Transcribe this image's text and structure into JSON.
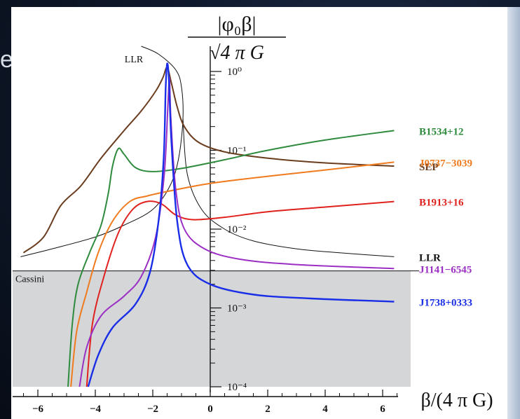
{
  "edge_char": "e",
  "chart_data": {
    "type": "line",
    "y_axis_label": {
      "numerator": "|φ₀β|",
      "denominator": "√4 π G"
    },
    "x_axis_label": "β/(4 π G)",
    "x_range": [
      -6.8,
      6.8
    ],
    "y_log_range": [
      -4.1,
      0.25
    ],
    "x_ticks": [
      -6,
      -4,
      -2,
      0,
      2,
      4,
      6
    ],
    "x_tick_labels": [
      "−6",
      "−4",
      "−2",
      "0",
      "2",
      "4",
      "6"
    ],
    "y_ticks": [
      0,
      -1,
      -2,
      -3,
      -4
    ],
    "y_tick_labels": [
      "10⁰",
      "10⁻¹",
      "10⁻²",
      "10⁻³",
      "10⁻⁴"
    ],
    "cassini": {
      "label": "Cassini",
      "log_value": -2.53,
      "excluded_region_color": "#d4d6d8"
    },
    "series": [
      {
        "name": "LLR",
        "color": "#111111",
        "stroke_width": 1,
        "label_positions": [
          "top",
          "right"
        ],
        "top_label": "LLR",
        "points": [
          [
            -6.6,
            -2.35
          ],
          [
            -5.5,
            -2.25
          ],
          [
            -4,
            -2.1
          ],
          [
            -3,
            -1.95
          ],
          [
            -2,
            -1.75
          ],
          [
            -1.4,
            -1.45
          ],
          [
            -1.1,
            -1.1
          ],
          [
            -0.95,
            -0.6
          ],
          [
            -1.0,
            -0.2
          ],
          [
            -1.2,
            0.02
          ],
          [
            -1.8,
            0.22
          ],
          [
            -2.4,
            0.32
          ]
        ],
        "points_right": [
          [
            -0.95,
            -0.6
          ],
          [
            -0.8,
            -1.3
          ],
          [
            -0.3,
            -1.75
          ],
          [
            0.5,
            -2.0
          ],
          [
            1.5,
            -2.15
          ],
          [
            3,
            -2.25
          ],
          [
            4.5,
            -2.3
          ],
          [
            6.4,
            -2.35
          ]
        ]
      },
      {
        "name": "SEP",
        "color": "#6b3d1f",
        "stroke_width": 2,
        "points": [
          [
            -6.5,
            -2.3
          ],
          [
            -5.8,
            -2.1
          ],
          [
            -5.2,
            -1.7
          ],
          [
            -4.5,
            -1.45
          ],
          [
            -3.8,
            -1.1
          ],
          [
            -3.0,
            -0.75
          ],
          [
            -2.4,
            -0.5
          ],
          [
            -1.9,
            -0.25
          ],
          [
            -1.65,
            -0.08
          ],
          [
            -1.5,
            0.05
          ],
          [
            -1.35,
            -0.15
          ],
          [
            -1.15,
            -0.45
          ],
          [
            -0.9,
            -0.7
          ],
          [
            -0.4,
            -0.9
          ],
          [
            0.5,
            -1.02
          ],
          [
            2,
            -1.1
          ],
          [
            4,
            -1.16
          ],
          [
            6.4,
            -1.2
          ]
        ]
      },
      {
        "name": "B1534+12",
        "color": "#2e8b3e",
        "stroke_width": 2,
        "points": [
          [
            -4.95,
            -4.0
          ],
          [
            -4.8,
            -3.2
          ],
          [
            -4.6,
            -2.7
          ],
          [
            -4.2,
            -2.3
          ],
          [
            -3.8,
            -1.95
          ],
          [
            -3.55,
            -1.55
          ],
          [
            -3.4,
            -1.2
          ],
          [
            -3.2,
            -0.98
          ],
          [
            -3.0,
            -1.05
          ],
          [
            -2.6,
            -1.22
          ],
          [
            -2.0,
            -1.27
          ],
          [
            -1,
            -1.23
          ],
          [
            0.5,
            -1.12
          ],
          [
            2,
            -1.0
          ],
          [
            4,
            -0.87
          ],
          [
            6.4,
            -0.75
          ]
        ]
      },
      {
        "name": "J0737-3039",
        "color": "#f07b1e",
        "stroke_width": 2,
        "points": [
          [
            -4.85,
            -4.0
          ],
          [
            -4.65,
            -3.3
          ],
          [
            -4.3,
            -2.8
          ],
          [
            -3.9,
            -2.3
          ],
          [
            -3.4,
            -1.9
          ],
          [
            -2.8,
            -1.65
          ],
          [
            -2.2,
            -1.58
          ],
          [
            -1.6,
            -1.53
          ],
          [
            0,
            -1.42
          ],
          [
            2,
            -1.33
          ],
          [
            4,
            -1.25
          ],
          [
            6.4,
            -1.15
          ]
        ]
      },
      {
        "name": "B1913+16",
        "color": "#e0221e",
        "stroke_width": 2,
        "points": [
          [
            -4.3,
            -4.0
          ],
          [
            -4.1,
            -3.2
          ],
          [
            -3.7,
            -2.6
          ],
          [
            -3.2,
            -2.05
          ],
          [
            -2.7,
            -1.75
          ],
          [
            -2.2,
            -1.65
          ],
          [
            -1.7,
            -1.68
          ],
          [
            -1.2,
            -1.82
          ],
          [
            -0.6,
            -1.88
          ],
          [
            0.5,
            -1.85
          ],
          [
            2,
            -1.78
          ],
          [
            4,
            -1.72
          ],
          [
            6.4,
            -1.65
          ]
        ]
      },
      {
        "name": "J1141-6545",
        "color": "#9b2fc4",
        "stroke_width": 2,
        "points": [
          [
            -4.55,
            -4.0
          ],
          [
            -4.3,
            -3.5
          ],
          [
            -3.8,
            -3.1
          ],
          [
            -3.0,
            -2.85
          ],
          [
            -2.4,
            -2.6
          ],
          [
            -1.9,
            -2.1
          ],
          [
            -1.6,
            -1.3
          ],
          [
            -1.47,
            -0.4
          ],
          [
            -1.42,
            -0.08
          ],
          [
            -1.37,
            -0.6
          ],
          [
            -1.2,
            -1.5
          ],
          [
            -0.9,
            -2.0
          ],
          [
            -0.2,
            -2.25
          ],
          [
            1,
            -2.38
          ],
          [
            3,
            -2.45
          ],
          [
            6.4,
            -2.5
          ]
        ]
      },
      {
        "name": "J1738+0333",
        "color": "#1a2ee8",
        "stroke_width": 2.4,
        "points": [
          [
            -4.25,
            -4.0
          ],
          [
            -3.9,
            -3.6
          ],
          [
            -3.4,
            -3.25
          ],
          [
            -2.6,
            -2.95
          ],
          [
            -2.1,
            -2.55
          ],
          [
            -1.8,
            -1.9
          ],
          [
            -1.62,
            -1.1
          ],
          [
            -1.55,
            -0.2
          ],
          [
            -1.5,
            0.1
          ],
          [
            -1.44,
            -0.1
          ],
          [
            -1.35,
            -0.9
          ],
          [
            -1.15,
            -1.9
          ],
          [
            -0.8,
            -2.45
          ],
          [
            0,
            -2.7
          ],
          [
            1.5,
            -2.83
          ],
          [
            3.5,
            -2.88
          ],
          [
            6.4,
            -2.92
          ]
        ]
      }
    ],
    "right_labels": [
      {
        "text": "B1534+12",
        "color": "#2e8b3e"
      },
      {
        "text": "SEP",
        "color": "#6b3d1f"
      },
      {
        "text": "J0737−3039",
        "color": "#f07b1e"
      },
      {
        "text": "B1913+16",
        "color": "#e0221e"
      },
      {
        "text": "LLR",
        "color": "#111111"
      },
      {
        "text": "J1141−6545",
        "color": "#9b2fc4"
      },
      {
        "text": "J1738+0333",
        "color": "#1a2ee8"
      }
    ]
  }
}
